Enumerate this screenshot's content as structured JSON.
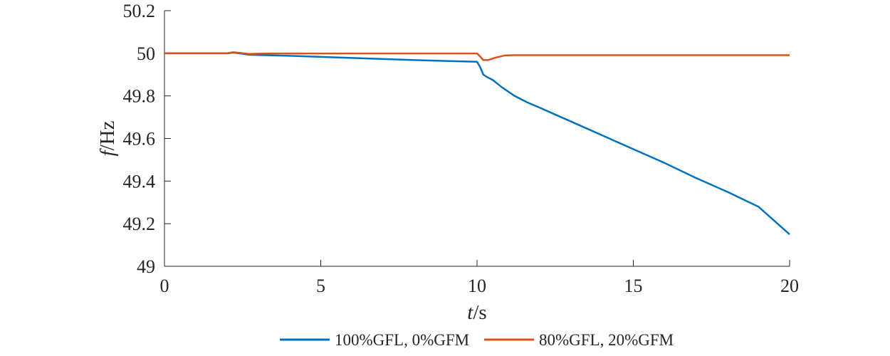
{
  "chart_data": {
    "type": "line",
    "title": "",
    "xlabel": {
      "italic": "t",
      "rest": "/s"
    },
    "ylabel": {
      "italic": "f",
      "rest": "/Hz"
    },
    "xlim": [
      0,
      20
    ],
    "ylim": [
      49,
      50.2
    ],
    "xticks": [
      0,
      5,
      10,
      15,
      20
    ],
    "xtick_labels": [
      "0",
      "5",
      "10",
      "15",
      "20"
    ],
    "yticks": [
      49,
      49.2,
      49.4,
      49.6,
      49.8,
      50,
      50.2
    ],
    "ytick_labels": [
      "49",
      "49.2",
      "49.4",
      "49.6",
      "49.8",
      "50",
      "50.2"
    ],
    "grid": false,
    "legend_position": "bottom",
    "series": [
      {
        "name": "100%GFL, 0%GFM",
        "color": "#0072BD",
        "x": [
          0,
          2.0,
          2.2,
          2.4,
          2.7,
          3.0,
          4,
          5,
          6,
          7,
          8,
          9,
          10.0,
          10.1,
          10.2,
          10.3,
          10.5,
          10.8,
          11.2,
          11.6,
          12,
          13,
          14,
          15,
          16,
          17,
          18,
          19,
          20
        ],
        "y": [
          50.0,
          50.0,
          50.003,
          50.0,
          49.993,
          49.992,
          49.988,
          49.983,
          49.978,
          49.973,
          49.968,
          49.964,
          49.96,
          49.935,
          49.9,
          49.89,
          49.875,
          49.84,
          49.8,
          49.77,
          49.745,
          49.68,
          49.615,
          49.55,
          49.485,
          49.415,
          49.35,
          49.28,
          49.15
        ]
      },
      {
        "name": "80%GFL, 20%GFM",
        "color": "#D95319",
        "x": [
          0,
          2.0,
          2.2,
          2.4,
          2.7,
          3.0,
          3.5,
          4,
          5,
          6,
          7,
          8,
          9,
          10.0,
          10.1,
          10.2,
          10.35,
          10.6,
          10.9,
          11.2,
          12,
          13,
          14,
          15,
          16,
          17,
          18,
          19,
          20
        ],
        "y": [
          50.0,
          50.0,
          50.005,
          50.002,
          49.997,
          49.998,
          49.999,
          49.999,
          49.999,
          49.999,
          49.999,
          49.999,
          49.999,
          49.999,
          49.985,
          49.968,
          49.968,
          49.98,
          49.99,
          49.991,
          49.991,
          49.991,
          49.991,
          49.991,
          49.991,
          49.991,
          49.991,
          49.991,
          49.991
        ]
      }
    ]
  }
}
